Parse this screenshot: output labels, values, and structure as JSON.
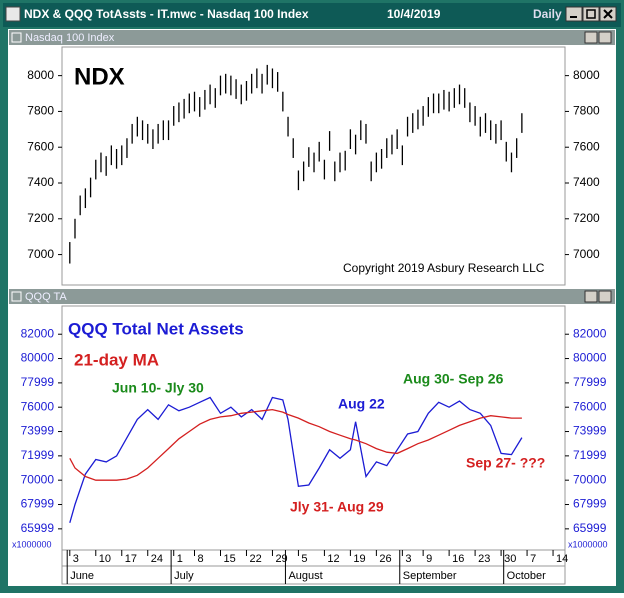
{
  "window": {
    "title": "NDX & QQQ TotAssts - IT.mwc - Nasdaq 100 Index",
    "date": "10/4/2019",
    "period": "Daily"
  },
  "chart_data": [
    {
      "type": "ohlc",
      "panel_title": "Nasdaq 100 Index",
      "title": "NDX",
      "annotation": "Copyright 2019 Asbury Research LLC",
      "color": "#000000",
      "xlim": [
        -1.5,
        95.3
      ],
      "ylim": [
        6830,
        8160
      ],
      "yticks": [
        7000,
        7200,
        7400,
        7600,
        7800,
        8000
      ],
      "high": [
        7070,
        7200,
        7330,
        7370,
        7430,
        7530,
        7570,
        7550,
        7610,
        7590,
        7610,
        7650,
        7730,
        7770,
        7750,
        7730,
        7700,
        7730,
        7750,
        7750,
        7830,
        7850,
        7870,
        7900,
        7910,
        7880,
        7920,
        7950,
        7930,
        8000,
        8010,
        8000,
        7980,
        7950,
        7970,
        8010,
        8040,
        8010,
        8060,
        8040,
        8020,
        7910,
        7770,
        7650,
        7470,
        7520,
        7600,
        7570,
        7630,
        7530,
        7690,
        7520,
        7570,
        7580,
        7700,
        7670,
        7750,
        7730,
        7520,
        7570,
        7590,
        7650,
        7670,
        7700,
        7610,
        7770,
        7790,
        7810,
        7830,
        7880,
        7900,
        7900,
        7920,
        7910,
        7930,
        7950,
        7930,
        7850,
        7830,
        7770,
        7790,
        7750,
        7730,
        7750,
        7630,
        7570,
        7650,
        7790
      ],
      "low": [
        6950,
        7090,
        7220,
        7260,
        7320,
        7420,
        7460,
        7440,
        7500,
        7480,
        7500,
        7540,
        7620,
        7660,
        7640,
        7620,
        7590,
        7620,
        7640,
        7640,
        7720,
        7740,
        7760,
        7790,
        7800,
        7770,
        7810,
        7840,
        7820,
        7890,
        7900,
        7890,
        7870,
        7840,
        7860,
        7900,
        7930,
        7900,
        7950,
        7930,
        7910,
        7800,
        7660,
        7540,
        7360,
        7410,
        7490,
        7460,
        7520,
        7420,
        7580,
        7410,
        7460,
        7470,
        7590,
        7560,
        7640,
        7620,
        7410,
        7460,
        7480,
        7540,
        7560,
        7590,
        7500,
        7660,
        7680,
        7700,
        7720,
        7770,
        7790,
        7790,
        7810,
        7800,
        7820,
        7840,
        7820,
        7740,
        7720,
        7660,
        7680,
        7640,
        7620,
        7640,
        7520,
        7460,
        7540,
        7680
      ]
    },
    {
      "type": "line",
      "panel_title": "QQQ TA",
      "title": "QQQ Total Net Assets",
      "y_unit_label": "x1000000",
      "xlim": [
        -1.5,
        95.3
      ],
      "ylim": [
        64260,
        84320
      ],
      "yticks": [
        65999,
        67999,
        70000,
        71999,
        73999,
        76000,
        77999,
        80000,
        82000
      ],
      "xticks": [
        {
          "value": 0,
          "label": "3"
        },
        {
          "value": 5,
          "label": "10"
        },
        {
          "value": 10,
          "label": "17"
        },
        {
          "value": 15,
          "label": "24"
        },
        {
          "value": 20,
          "label": "1"
        },
        {
          "value": 24,
          "label": "8"
        },
        {
          "value": 29,
          "label": "15"
        },
        {
          "value": 34,
          "label": "22"
        },
        {
          "value": 39,
          "label": "29"
        },
        {
          "value": 44,
          "label": "5"
        },
        {
          "value": 49,
          "label": "12"
        },
        {
          "value": 54,
          "label": "19"
        },
        {
          "value": 59,
          "label": "26"
        },
        {
          "value": 64,
          "label": "3"
        },
        {
          "value": 68,
          "label": "9"
        },
        {
          "value": 73,
          "label": "16"
        },
        {
          "value": 78,
          "label": "23"
        },
        {
          "value": 83,
          "label": "30"
        },
        {
          "value": 88,
          "label": "7"
        },
        {
          "value": 93,
          "label": "14"
        }
      ],
      "months": [
        {
          "value": -0.5,
          "label": "June"
        },
        {
          "value": 19.5,
          "label": "July"
        },
        {
          "value": 41.5,
          "label": "August"
        },
        {
          "value": 63.5,
          "label": "September"
        },
        {
          "value": 83.5,
          "label": "October"
        }
      ],
      "x": [
        0,
        1,
        3,
        5,
        7,
        9,
        11,
        13,
        15,
        17,
        19,
        21,
        23,
        25,
        27,
        29,
        31,
        33,
        35,
        37,
        39,
        41,
        42,
        44,
        46,
        48,
        50,
        52,
        54,
        55,
        57,
        59,
        61,
        63,
        65,
        67,
        69,
        71,
        73,
        75,
        77,
        79,
        81,
        83,
        85,
        87
      ],
      "series": [
        {
          "name": "QQQ Total Net Assets",
          "color": "#1c1cd4",
          "values": [
            66500,
            68000,
            70500,
            71700,
            71500,
            72000,
            73500,
            75000,
            75800,
            75000,
            76200,
            75700,
            76000,
            76400,
            76800,
            75500,
            76000,
            75200,
            75800,
            75000,
            76800,
            76600,
            75000,
            69500,
            69600,
            71000,
            72500,
            71800,
            72500,
            74800,
            70300,
            71500,
            71200,
            72500,
            73800,
            74000,
            75500,
            76400,
            76000,
            76500,
            75800,
            75500,
            74500,
            72200,
            72100,
            73500
          ]
        },
        {
          "name": "21-day MA",
          "color": "#d42020",
          "values": [
            71800,
            71000,
            70300,
            70000,
            70000,
            70000,
            70100,
            70400,
            71000,
            71800,
            72600,
            73400,
            74000,
            74600,
            75000,
            75200,
            75300,
            75500,
            75600,
            75700,
            75800,
            75600,
            75400,
            75100,
            74700,
            74400,
            74000,
            73700,
            73400,
            73300,
            73000,
            72600,
            72300,
            72200,
            72600,
            73000,
            73300,
            73700,
            74100,
            74500,
            74800,
            75100,
            75300,
            75200,
            75100,
            75100
          ]
        }
      ],
      "annotations": [
        {
          "text": "Jun 10- Jly 30",
          "color": "#1a8a1a"
        },
        {
          "text": "Aug 22",
          "color": "#1c1cd4"
        },
        {
          "text": "Aug 30- Sep 26",
          "color": "#1a8a1a"
        },
        {
          "text": "Jly 31- Aug 29",
          "color": "#d42020"
        },
        {
          "text": "Sep 27- ???",
          "color": "#d42020"
        }
      ]
    }
  ]
}
